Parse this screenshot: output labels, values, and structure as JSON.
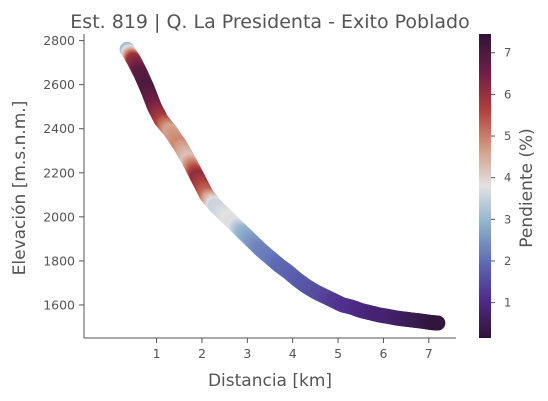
{
  "chart_data": {
    "type": "scatter",
    "title": "Est. 819 | Q. La Presidenta - Exito Poblado",
    "xlabel": "Distancia [km]",
    "ylabel": "Elevación [m.s.n.m.]",
    "xlim": [
      -0.6,
      7.6
    ],
    "ylim": [
      1450,
      2830
    ],
    "xticks": [
      1,
      2,
      3,
      4,
      5,
      6,
      7
    ],
    "yticks": [
      1600,
      1800,
      2000,
      2200,
      2400,
      2600,
      2800
    ],
    "grid": false,
    "colormap": "twilight_shifted",
    "colorbar": {
      "label": "Pendiente (%)",
      "range": [
        0.15,
        7.45
      ],
      "ticks": [
        1,
        2,
        3,
        4,
        5,
        6,
        7
      ]
    },
    "color_stops": [
      "#2f1436",
      "#4f2b8a",
      "#5e6ab4",
      "#8fb1cc",
      "#e3e1e4",
      "#d29a82",
      "#b0403a",
      "#6e1e46",
      "#2f1436"
    ],
    "series": [
      {
        "x": [
          0.35,
          0.5,
          0.65,
          0.8,
          0.95,
          1.1,
          1.3,
          1.5,
          1.7,
          1.9,
          2.1,
          2.3,
          2.5,
          2.7,
          2.9,
          3.1,
          3.3,
          3.5,
          3.7,
          3.9,
          4.1,
          4.3,
          4.5,
          4.7,
          4.9,
          5.1,
          5.3,
          5.5,
          5.7,
          5.9,
          6.1,
          6.3,
          6.5,
          6.7,
          6.9,
          7.05,
          7.2
        ],
        "y": [
          2760,
          2710,
          2650,
          2580,
          2500,
          2440,
          2390,
          2330,
          2260,
          2180,
          2100,
          2050,
          2010,
          1970,
          1930,
          1890,
          1850,
          1815,
          1780,
          1750,
          1715,
          1685,
          1660,
          1640,
          1620,
          1600,
          1590,
          1575,
          1565,
          1555,
          1548,
          1540,
          1535,
          1530,
          1525,
          1520,
          1518
        ],
        "slope": [
          3.0,
          6.0,
          6.8,
          7.0,
          6.5,
          5.8,
          4.6,
          4.9,
          4.2,
          6.1,
          5.2,
          3.5,
          3.7,
          3.9,
          3.0,
          2.6,
          2.3,
          2.2,
          2.0,
          1.9,
          1.8,
          1.7,
          1.6,
          1.5,
          1.3,
          1.2,
          1.1,
          1.0,
          0.9,
          0.8,
          0.8,
          0.7,
          0.6,
          0.5,
          0.4,
          0.3,
          0.2
        ]
      }
    ]
  }
}
